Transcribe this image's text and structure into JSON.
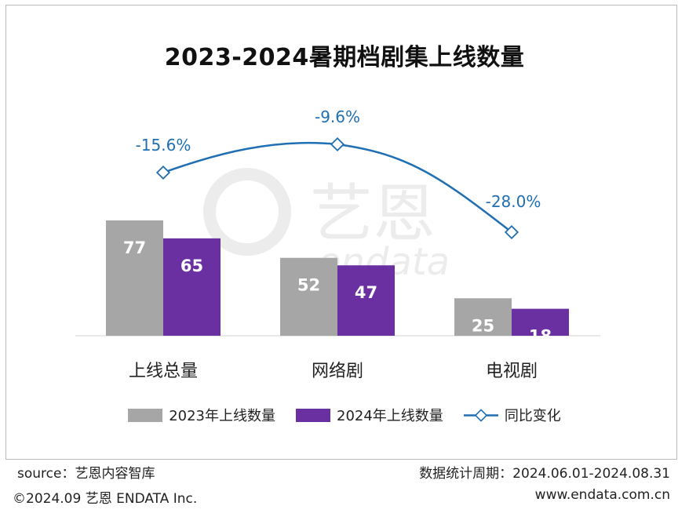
{
  "chart_data": {
    "type": "bar",
    "title": "2023-2024暑期档剧集上线数量",
    "categories": [
      "上线总量",
      "网络剧",
      "电视剧"
    ],
    "series": [
      {
        "name": "2023年上线数量",
        "values": [
          77,
          52,
          25
        ],
        "color": "#a6a6a6"
      },
      {
        "name": "2024年上线数量",
        "values": [
          65,
          47,
          18
        ],
        "color": "#6a2fa0"
      }
    ],
    "line_series": {
      "name": "同比变化",
      "values": [
        -15.6,
        -9.6,
        -28.0
      ],
      "labels": [
        "-15.6%",
        "-9.6%",
        "-28.0%"
      ],
      "color": "#1f6fb2"
    },
    "ylim": [
      0,
      100
    ],
    "grid": false,
    "legend_position": "bottom"
  },
  "footer": {
    "source": "source：艺恩内容智库",
    "period": "数据统计周期：2024.06.01-2024.08.31",
    "copyright": "©2024.09 艺恩 ENDATA Inc.",
    "website": "www.endata.com.cn"
  },
  "watermark": {
    "brand": "艺恩",
    "sub": "endata"
  }
}
